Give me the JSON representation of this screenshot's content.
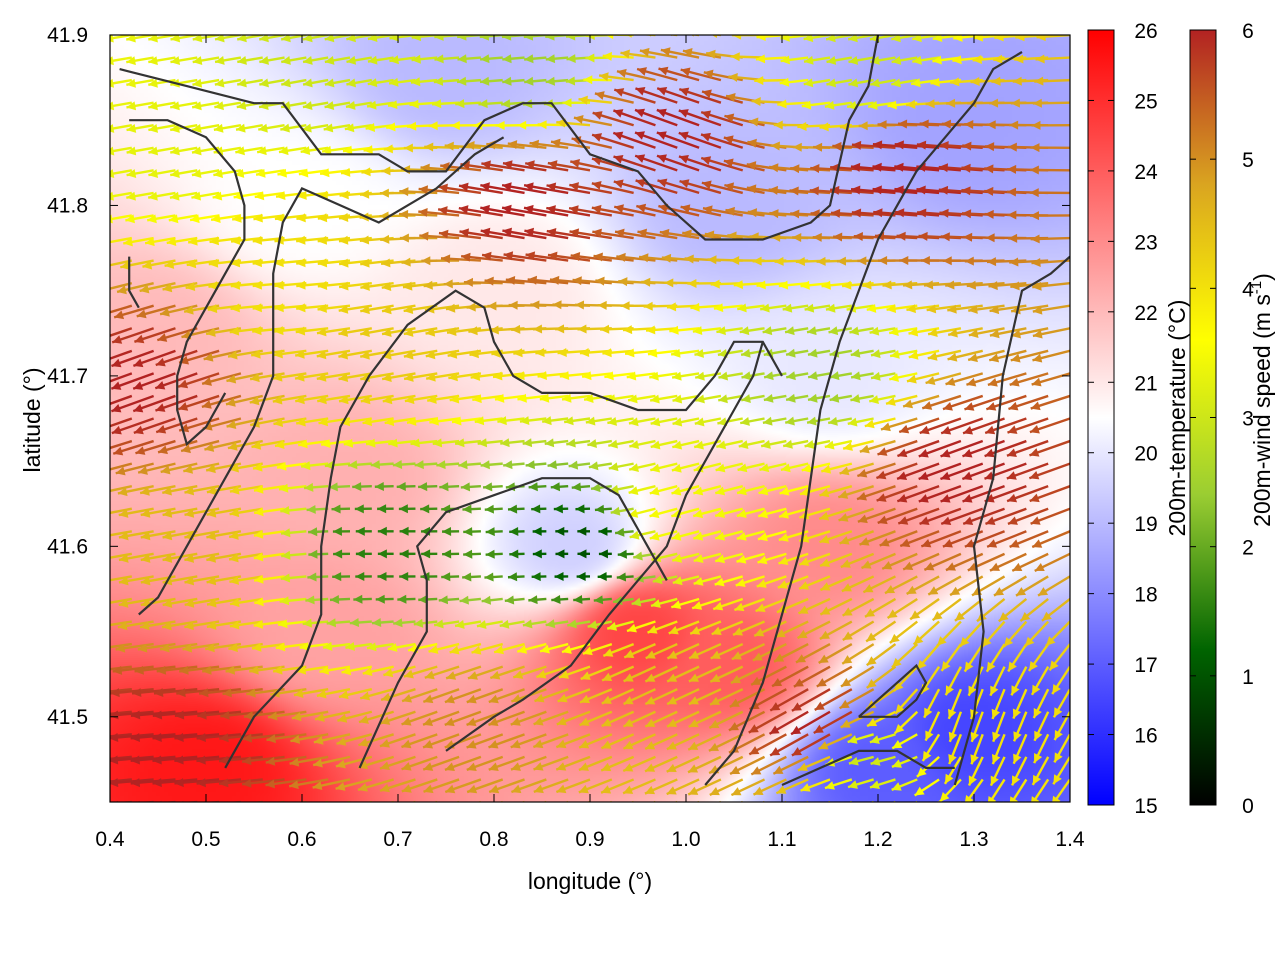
{
  "chart_data": {
    "type": "heatmap",
    "overlay": "vector-field",
    "xlabel": "longitude (°)",
    "ylabel": "latitude (°)",
    "xlim": [
      0.4,
      1.4
    ],
    "ylim": [
      41.45,
      41.9
    ],
    "xticks": [
      "0.4",
      "0.5",
      "0.6",
      "0.7",
      "0.8",
      "0.9",
      "1.0",
      "1.1",
      "1.2",
      "1.3",
      "1.4"
    ],
    "yticks": [
      "41.5",
      "41.6",
      "41.7",
      "41.8",
      "41.9"
    ],
    "xtick_values": [
      0.4,
      0.5,
      0.6,
      0.7,
      0.8,
      0.9,
      1.0,
      1.1,
      1.2,
      1.3,
      1.4
    ],
    "ytick_values": [
      41.5,
      41.6,
      41.7,
      41.8,
      41.9
    ],
    "temperature_colorbar": {
      "label": "200m-temperature (°C)",
      "range": [
        15,
        26
      ],
      "ticks": [
        "15",
        "16",
        "17",
        "18",
        "19",
        "20",
        "21",
        "22",
        "23",
        "24",
        "25",
        "26"
      ],
      "colors": [
        "#0000ff",
        "#ffffff",
        "#ff0000"
      ],
      "midpoint": 20.5
    },
    "wind_colorbar": {
      "label": "200m-wind speed (m s-1)",
      "range": [
        0,
        6
      ],
      "ticks": [
        "0",
        "1",
        "2",
        "3",
        "4",
        "5",
        "6"
      ],
      "colors": [
        "#000000",
        "#006400",
        "#9acd32",
        "#ffff00",
        "#daa520",
        "#b22222"
      ]
    },
    "temperature_regions": [
      {
        "lon": 0.5,
        "lat": 41.47,
        "t": 25.5
      },
      {
        "lon": 0.62,
        "lat": 41.55,
        "t": 22.5
      },
      {
        "lon": 0.65,
        "lat": 41.64,
        "t": 22.2
      },
      {
        "lon": 0.45,
        "lat": 41.72,
        "t": 22.0
      },
      {
        "lon": 0.88,
        "lat": 41.6,
        "t": 19.5
      },
      {
        "lon": 0.95,
        "lat": 41.55,
        "t": 24.5
      },
      {
        "lon": 1.05,
        "lat": 41.53,
        "t": 24.0
      },
      {
        "lon": 1.15,
        "lat": 41.6,
        "t": 23.0
      },
      {
        "lon": 1.3,
        "lat": 41.49,
        "t": 16.5
      },
      {
        "lon": 1.2,
        "lat": 41.47,
        "t": 17.0
      },
      {
        "lon": 1.05,
        "lat": 41.8,
        "t": 19.0
      },
      {
        "lon": 1.3,
        "lat": 41.85,
        "t": 18.5
      },
      {
        "lon": 0.75,
        "lat": 41.88,
        "t": 19.0
      },
      {
        "lon": 0.6,
        "lat": 41.8,
        "t": 20.5
      },
      {
        "lon": 0.8,
        "lat": 41.75,
        "t": 21.0
      },
      {
        "lon": 1.15,
        "lat": 41.7,
        "t": 20.0
      }
    ],
    "wind_regions": [
      {
        "lon": 0.48,
        "lat": 41.48,
        "speed": 6.0,
        "dir": 185
      },
      {
        "lon": 0.45,
        "lat": 41.7,
        "speed": 6.0,
        "dir": 200
      },
      {
        "lon": 0.5,
        "lat": 41.6,
        "speed": 4.5,
        "dir": 190
      },
      {
        "lon": 0.47,
        "lat": 41.83,
        "speed": 3.3,
        "dir": 190
      },
      {
        "lon": 0.62,
        "lat": 41.88,
        "speed": 3.0,
        "dir": 190
      },
      {
        "lon": 0.6,
        "lat": 41.75,
        "speed": 4.0,
        "dir": 185
      },
      {
        "lon": 0.7,
        "lat": 41.6,
        "speed": 1.5,
        "dir": 180
      },
      {
        "lon": 0.7,
        "lat": 41.72,
        "speed": 4.3,
        "dir": 190
      },
      {
        "lon": 0.9,
        "lat": 41.6,
        "speed": 1.0,
        "dir": 180
      },
      {
        "lon": 0.85,
        "lat": 41.8,
        "speed": 6.0,
        "dir": 170
      },
      {
        "lon": 1.0,
        "lat": 41.84,
        "speed": 6.0,
        "dir": 160
      },
      {
        "lon": 1.25,
        "lat": 41.82,
        "speed": 6.0,
        "dir": 175
      },
      {
        "lon": 1.3,
        "lat": 41.65,
        "speed": 6.0,
        "dir": 200
      },
      {
        "lon": 1.15,
        "lat": 41.7,
        "speed": 2.5,
        "dir": 190
      },
      {
        "lon": 1.0,
        "lat": 41.62,
        "speed": 3.5,
        "dir": 195
      },
      {
        "lon": 0.8,
        "lat": 41.5,
        "speed": 5.0,
        "dir": 200
      },
      {
        "lon": 1.0,
        "lat": 41.52,
        "speed": 4.5,
        "dir": 205
      },
      {
        "lon": 1.15,
        "lat": 41.5,
        "speed": 6.0,
        "dir": 210
      },
      {
        "lon": 1.3,
        "lat": 41.5,
        "speed": 4.0,
        "dir": 250
      },
      {
        "lon": 1.2,
        "lat": 41.48,
        "speed": 3.0,
        "dir": 195
      },
      {
        "lon": 0.85,
        "lat": 41.88,
        "speed": 2.5,
        "dir": 185
      },
      {
        "lon": 1.2,
        "lat": 41.88,
        "speed": 3.0,
        "dir": 190
      }
    ],
    "contours": [
      [
        [
          0.41,
          41.88
        ],
        [
          0.48,
          41.87
        ],
        [
          0.55,
          41.86
        ],
        [
          0.58,
          41.86
        ],
        [
          0.62,
          41.83
        ],
        [
          0.68,
          41.83
        ],
        [
          0.71,
          41.82
        ],
        [
          0.75,
          41.82
        ],
        [
          0.79,
          41.85
        ],
        [
          0.83,
          41.86
        ],
        [
          0.86,
          41.86
        ],
        [
          0.9,
          41.83
        ],
        [
          0.95,
          41.82
        ],
        [
          0.98,
          41.8
        ],
        [
          1.02,
          41.78
        ],
        [
          1.08,
          41.78
        ],
        [
          1.13,
          41.79
        ],
        [
          1.15,
          41.8
        ],
        [
          1.17,
          41.85
        ],
        [
          1.19,
          41.87
        ],
        [
          1.2,
          41.9
        ]
      ],
      [
        [
          0.42,
          41.85
        ],
        [
          0.46,
          41.85
        ],
        [
          0.5,
          41.84
        ],
        [
          0.53,
          41.82
        ],
        [
          0.54,
          41.8
        ],
        [
          0.54,
          41.78
        ],
        [
          0.52,
          41.76
        ],
        [
          0.5,
          41.74
        ],
        [
          0.48,
          41.72
        ],
        [
          0.47,
          41.7
        ],
        [
          0.47,
          41.68
        ],
        [
          0.48,
          41.66
        ],
        [
          0.5,
          41.67
        ],
        [
          0.52,
          41.69
        ]
      ],
      [
        [
          0.43,
          41.56
        ],
        [
          0.45,
          41.57
        ],
        [
          0.47,
          41.59
        ],
        [
          0.5,
          41.62
        ],
        [
          0.53,
          41.65
        ],
        [
          0.55,
          41.67
        ],
        [
          0.57,
          41.7
        ],
        [
          0.57,
          41.73
        ],
        [
          0.57,
          41.76
        ],
        [
          0.58,
          41.79
        ],
        [
          0.6,
          41.81
        ],
        [
          0.64,
          41.8
        ],
        [
          0.68,
          41.79
        ],
        [
          0.74,
          41.81
        ],
        [
          0.78,
          41.83
        ],
        [
          0.81,
          41.84
        ]
      ],
      [
        [
          0.52,
          41.47
        ],
        [
          0.55,
          41.5
        ],
        [
          0.6,
          41.53
        ],
        [
          0.62,
          41.56
        ],
        [
          0.62,
          41.6
        ],
        [
          0.63,
          41.64
        ],
        [
          0.64,
          41.67
        ],
        [
          0.67,
          41.7
        ],
        [
          0.71,
          41.73
        ],
        [
          0.76,
          41.75
        ],
        [
          0.79,
          41.74
        ],
        [
          0.8,
          41.72
        ],
        [
          0.82,
          41.7
        ],
        [
          0.85,
          41.69
        ],
        [
          0.9,
          41.69
        ],
        [
          0.95,
          41.68
        ],
        [
          1.0,
          41.68
        ],
        [
          1.03,
          41.7
        ],
        [
          1.05,
          41.72
        ],
        [
          1.08,
          41.72
        ],
        [
          1.1,
          41.7
        ]
      ],
      [
        [
          0.66,
          41.47
        ],
        [
          0.7,
          41.52
        ],
        [
          0.73,
          41.55
        ],
        [
          0.73,
          41.58
        ],
        [
          0.72,
          41.6
        ],
        [
          0.75,
          41.62
        ],
        [
          0.8,
          41.63
        ],
        [
          0.85,
          41.64
        ],
        [
          0.9,
          41.64
        ],
        [
          0.93,
          41.63
        ],
        [
          0.96,
          41.6
        ],
        [
          0.98,
          41.58
        ]
      ],
      [
        [
          0.75,
          41.48
        ],
        [
          0.8,
          41.5
        ],
        [
          0.83,
          41.51
        ],
        [
          0.88,
          41.53
        ],
        [
          0.92,
          41.56
        ],
        [
          0.95,
          41.58
        ],
        [
          0.98,
          41.6
        ],
        [
          1.0,
          41.63
        ],
        [
          1.03,
          41.66
        ],
        [
          1.05,
          41.68
        ],
        [
          1.07,
          41.7
        ],
        [
          1.08,
          41.72
        ]
      ],
      [
        [
          1.02,
          41.46
        ],
        [
          1.05,
          41.48
        ],
        [
          1.08,
          41.52
        ],
        [
          1.1,
          41.56
        ],
        [
          1.12,
          41.6
        ],
        [
          1.13,
          41.64
        ],
        [
          1.14,
          41.68
        ],
        [
          1.16,
          41.72
        ],
        [
          1.18,
          41.75
        ],
        [
          1.2,
          41.78
        ],
        [
          1.22,
          41.8
        ],
        [
          1.24,
          41.82
        ],
        [
          1.27,
          41.84
        ],
        [
          1.3,
          41.86
        ],
        [
          1.32,
          41.88
        ],
        [
          1.35,
          41.89
        ]
      ],
      [
        [
          1.1,
          41.46
        ],
        [
          1.14,
          41.47
        ],
        [
          1.18,
          41.48
        ],
        [
          1.22,
          41.48
        ],
        [
          1.25,
          41.47
        ],
        [
          1.28,
          41.47
        ]
      ],
      [
        [
          1.18,
          41.5
        ],
        [
          1.22,
          41.5
        ],
        [
          1.24,
          41.51
        ],
        [
          1.25,
          41.52
        ],
        [
          1.24,
          41.53
        ],
        [
          1.22,
          41.52
        ],
        [
          1.2,
          41.51
        ],
        [
          1.18,
          41.5
        ]
      ],
      [
        [
          1.28,
          41.46
        ],
        [
          1.3,
          41.5
        ],
        [
          1.31,
          41.55
        ],
        [
          1.3,
          41.6
        ],
        [
          1.32,
          41.64
        ],
        [
          1.33,
          41.7
        ],
        [
          1.35,
          41.75
        ],
        [
          1.38,
          41.76
        ],
        [
          1.4,
          41.77
        ]
      ],
      [
        [
          0.42,
          41.77
        ],
        [
          0.42,
          41.75
        ],
        [
          0.43,
          41.74
        ]
      ]
    ]
  }
}
